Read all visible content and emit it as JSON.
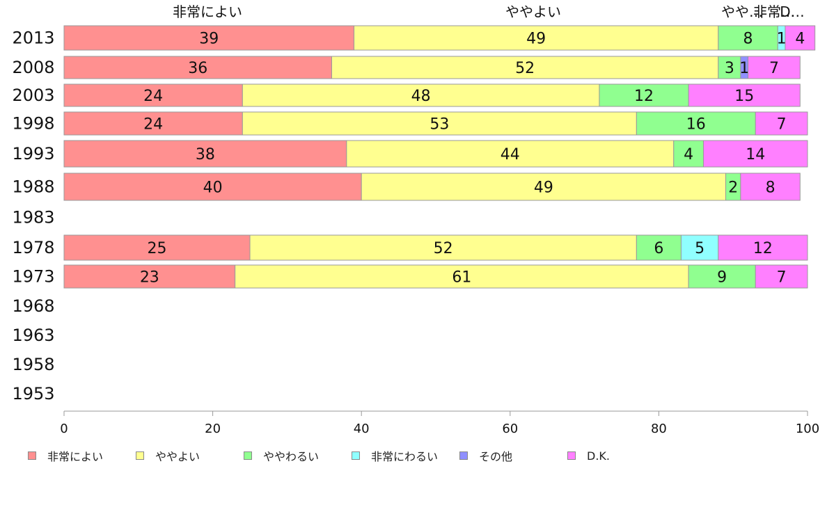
{
  "chart_data": {
    "type": "bar",
    "orientation": "horizontal",
    "stacked": true,
    "categories": [
      "2013",
      "2008",
      "2003",
      "1998",
      "1993",
      "1988",
      "1983",
      "1978",
      "1973",
      "1968",
      "1963",
      "1958",
      "1953"
    ],
    "series": [
      {
        "name": "非常によい",
        "color": "#ff9090",
        "values": [
          39,
          36,
          24,
          24,
          38,
          40,
          null,
          25,
          23,
          null,
          null,
          null,
          null
        ]
      },
      {
        "name": "ややよい",
        "color": "#ffff90",
        "values": [
          49,
          52,
          48,
          53,
          44,
          49,
          null,
          52,
          61,
          null,
          null,
          null,
          null
        ]
      },
      {
        "name": "ややわるい",
        "color": "#90ff90",
        "values": [
          8,
          3,
          12,
          16,
          4,
          2,
          null,
          6,
          9,
          null,
          null,
          null,
          null
        ]
      },
      {
        "name": "非常にわるい",
        "color": "#90ffff",
        "values": [
          1,
          0,
          0,
          0,
          0,
          0,
          null,
          5,
          0,
          null,
          null,
          null,
          null
        ]
      },
      {
        "name": "その他",
        "color": "#9090ff",
        "values": [
          0,
          1,
          0,
          0,
          0,
          0,
          null,
          0,
          0,
          null,
          null,
          null,
          null
        ]
      },
      {
        "name": "D.K.",
        "color": "#ff80ff",
        "values": [
          4,
          7,
          15,
          7,
          14,
          8,
          null,
          12,
          7,
          null,
          null,
          null,
          null
        ]
      }
    ],
    "top_labels": [
      "非常によい",
      "ややよい",
      "やや…",
      "非常…",
      "D…"
    ],
    "x_ticks": [
      "0",
      "20",
      "40",
      "60",
      "80",
      "100"
    ],
    "xlim": [
      0,
      100
    ],
    "legend_position": "bottom",
    "grid": false
  }
}
